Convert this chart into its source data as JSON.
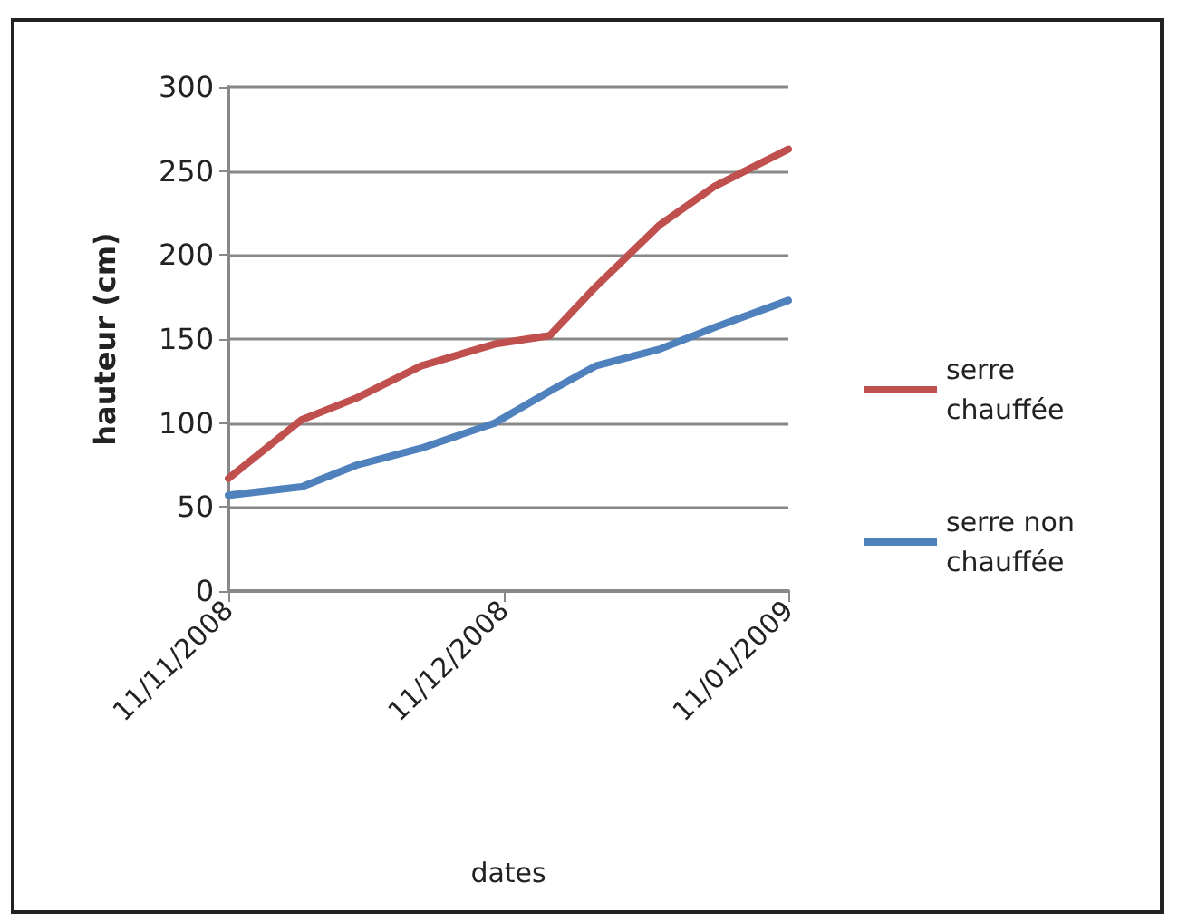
{
  "chart_data": {
    "type": "line",
    "xlabel": "dates",
    "ylabel": "hauteur (cm)",
    "x": [
      "2008-11-11",
      "2008-11-19",
      "2008-11-25",
      "2008-12-02",
      "2008-12-10",
      "2008-12-16",
      "2008-12-21",
      "2008-12-28",
      "2009-01-03",
      "2009-01-11"
    ],
    "series": [
      {
        "name": "serre chauffée",
        "color": "#c0504d",
        "values": [
          67,
          102,
          115,
          134,
          147,
          152,
          181,
          218,
          241,
          263
        ]
      },
      {
        "name": "serre non chauffée",
        "color": "#4f81bd",
        "values": [
          57,
          62,
          75,
          85,
          100,
          119,
          134,
          144,
          157,
          173
        ]
      }
    ],
    "xlim": [
      "2008-11-11",
      "2009-01-11"
    ],
    "xticks": [
      {
        "value": "2008-11-11",
        "label": "11/11/2008"
      },
      {
        "value": "2008-12-11",
        "label": "11/12/2008"
      },
      {
        "value": "2009-01-11",
        "label": "11/01/2009"
      }
    ],
    "ylim": [
      0,
      300
    ],
    "yticks": [
      0,
      50,
      100,
      150,
      200,
      250,
      300
    ],
    "grid": "y",
    "legend": "right",
    "marker": "none",
    "line_style": "solid"
  }
}
